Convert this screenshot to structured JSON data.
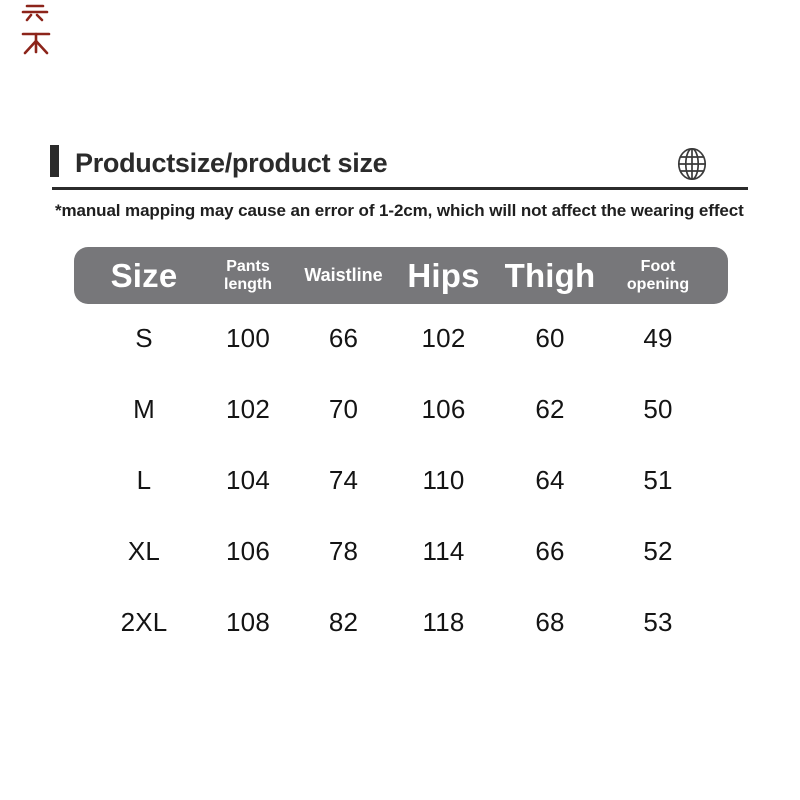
{
  "header": {
    "title": "Productsize/product size",
    "globe_icon": "globe",
    "red_watermark_icon": "red-cjk-watermark",
    "accent_bar_color": "#2b2b2b"
  },
  "note": "*manual mapping may cause an error of 1-2cm, which will not affect the wearing effect",
  "colors": {
    "table_header_bg": "#77777a",
    "table_header_text": "#ffffff",
    "body_text": "#141414",
    "watermark_red": "#8c241a"
  },
  "chart_data": {
    "type": "table",
    "title": "Productsize/product size",
    "note": "*manual mapping may cause an error of 1-2cm, which will not affect the wearing effect",
    "columns": [
      "Size",
      "Pants length",
      "Waistline",
      "Hips",
      "Thigh",
      "Foot opening"
    ],
    "rows": [
      [
        "S",
        100,
        66,
        102,
        60,
        49
      ],
      [
        "M",
        102,
        70,
        106,
        62,
        50
      ],
      [
        "L",
        104,
        74,
        110,
        64,
        51
      ],
      [
        "XL",
        106,
        78,
        114,
        66,
        52
      ],
      [
        "2XL",
        108,
        82,
        118,
        68,
        53
      ]
    ]
  }
}
